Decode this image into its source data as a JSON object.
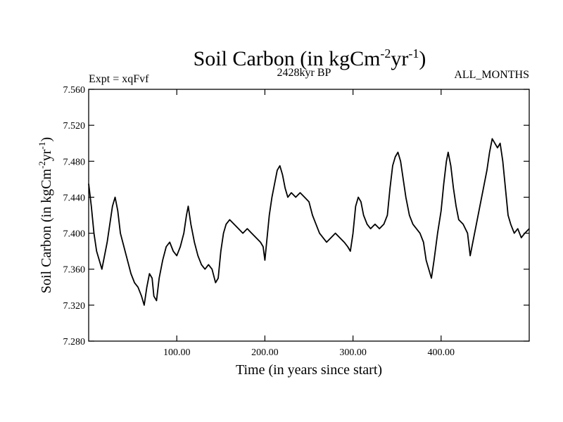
{
  "chart_data": {
    "type": "line",
    "title": "Soil Carbon (in kgCm",
    "title_sup1": "-2",
    "title_mid": "yr",
    "title_sup2": "-1",
    "title_end": ")",
    "subtitle_left": "Expt = xqFvf",
    "subtitle_center": "2428kyr BP",
    "subtitle_right": "ALL_MONTHS",
    "xlabel": "Time (in years since start)",
    "ylabel": "Soil Carbon (in kgCm",
    "ylabel_sup1": "-2",
    "ylabel_mid": "yr",
    "ylabel_sup2": "-1",
    "ylabel_end": ")",
    "xlim": [
      0,
      500
    ],
    "ylim": [
      7.28,
      7.56
    ],
    "xticks": [
      100,
      200,
      300,
      400
    ],
    "xtick_labels": [
      "100.00",
      "200.00",
      "300.00",
      "400.00"
    ],
    "yticks": [
      7.28,
      7.32,
      7.36,
      7.4,
      7.44,
      7.48,
      7.52,
      7.56
    ],
    "ytick_labels": [
      "7.280",
      "7.320",
      "7.360",
      "7.400",
      "7.440",
      "7.480",
      "7.520",
      "7.560"
    ],
    "grid": false,
    "series": [
      {
        "name": "Soil Carbon",
        "color": "#000000",
        "points": [
          [
            0,
            7.455
          ],
          [
            3,
            7.43
          ],
          [
            6,
            7.4
          ],
          [
            9,
            7.38
          ],
          [
            12,
            7.37
          ],
          [
            15,
            7.36
          ],
          [
            18,
            7.375
          ],
          [
            21,
            7.39
          ],
          [
            24,
            7.41
          ],
          [
            27,
            7.43
          ],
          [
            30,
            7.44
          ],
          [
            33,
            7.425
          ],
          [
            36,
            7.4
          ],
          [
            40,
            7.385
          ],
          [
            44,
            7.37
          ],
          [
            48,
            7.355
          ],
          [
            52,
            7.345
          ],
          [
            56,
            7.34
          ],
          [
            60,
            7.33
          ],
          [
            63,
            7.32
          ],
          [
            66,
            7.34
          ],
          [
            69,
            7.355
          ],
          [
            72,
            7.35
          ],
          [
            74,
            7.33
          ],
          [
            77,
            7.325
          ],
          [
            80,
            7.35
          ],
          [
            84,
            7.37
          ],
          [
            88,
            7.385
          ],
          [
            92,
            7.39
          ],
          [
            96,
            7.38
          ],
          [
            100,
            7.375
          ],
          [
            104,
            7.385
          ],
          [
            108,
            7.4
          ],
          [
            111,
            7.42
          ],
          [
            113,
            7.43
          ],
          [
            116,
            7.41
          ],
          [
            120,
            7.39
          ],
          [
            124,
            7.375
          ],
          [
            128,
            7.365
          ],
          [
            132,
            7.36
          ],
          [
            136,
            7.365
          ],
          [
            140,
            7.36
          ],
          [
            144,
            7.345
          ],
          [
            147,
            7.35
          ],
          [
            150,
            7.38
          ],
          [
            153,
            7.4
          ],
          [
            156,
            7.41
          ],
          [
            160,
            7.415
          ],
          [
            165,
            7.41
          ],
          [
            170,
            7.405
          ],
          [
            175,
            7.4
          ],
          [
            180,
            7.405
          ],
          [
            185,
            7.4
          ],
          [
            190,
            7.395
          ],
          [
            195,
            7.39
          ],
          [
            198,
            7.385
          ],
          [
            200,
            7.37
          ],
          [
            202,
            7.39
          ],
          [
            205,
            7.42
          ],
          [
            208,
            7.44
          ],
          [
            211,
            7.455
          ],
          [
            214,
            7.47
          ],
          [
            217,
            7.475
          ],
          [
            220,
            7.465
          ],
          [
            223,
            7.45
          ],
          [
            226,
            7.44
          ],
          [
            230,
            7.445
          ],
          [
            235,
            7.44
          ],
          [
            240,
            7.445
          ],
          [
            245,
            7.44
          ],
          [
            250,
            7.435
          ],
          [
            254,
            7.42
          ],
          [
            258,
            7.41
          ],
          [
            262,
            7.4
          ],
          [
            266,
            7.395
          ],
          [
            270,
            7.39
          ],
          [
            275,
            7.395
          ],
          [
            280,
            7.4
          ],
          [
            285,
            7.395
          ],
          [
            290,
            7.39
          ],
          [
            294,
            7.385
          ],
          [
            297,
            7.38
          ],
          [
            300,
            7.4
          ],
          [
            303,
            7.43
          ],
          [
            306,
            7.44
          ],
          [
            309,
            7.435
          ],
          [
            312,
            7.42
          ],
          [
            316,
            7.41
          ],
          [
            320,
            7.405
          ],
          [
            325,
            7.41
          ],
          [
            330,
            7.405
          ],
          [
            335,
            7.41
          ],
          [
            339,
            7.42
          ],
          [
            342,
            7.45
          ],
          [
            345,
            7.475
          ],
          [
            348,
            7.485
          ],
          [
            351,
            7.49
          ],
          [
            354,
            7.48
          ],
          [
            357,
            7.46
          ],
          [
            360,
            7.44
          ],
          [
            364,
            7.42
          ],
          [
            368,
            7.41
          ],
          [
            372,
            7.405
          ],
          [
            376,
            7.4
          ],
          [
            380,
            7.39
          ],
          [
            383,
            7.37
          ],
          [
            386,
            7.36
          ],
          [
            389,
            7.35
          ],
          [
            392,
            7.37
          ],
          [
            396,
            7.4
          ],
          [
            400,
            7.425
          ],
          [
            403,
            7.455
          ],
          [
            406,
            7.48
          ],
          [
            408,
            7.49
          ],
          [
            411,
            7.475
          ],
          [
            414,
            7.45
          ],
          [
            417,
            7.43
          ],
          [
            420,
            7.415
          ],
          [
            425,
            7.41
          ],
          [
            430,
            7.4
          ],
          [
            433,
            7.375
          ],
          [
            436,
            7.39
          ],
          [
            440,
            7.41
          ],
          [
            444,
            7.43
          ],
          [
            448,
            7.45
          ],
          [
            452,
            7.47
          ],
          [
            455,
            7.49
          ],
          [
            458,
            7.505
          ],
          [
            461,
            7.5
          ],
          [
            464,
            7.495
          ],
          [
            467,
            7.5
          ],
          [
            470,
            7.48
          ],
          [
            473,
            7.45
          ],
          [
            476,
            7.42
          ],
          [
            479,
            7.41
          ],
          [
            483,
            7.4
          ],
          [
            487,
            7.405
          ],
          [
            491,
            7.395
          ],
          [
            495,
            7.4
          ],
          [
            500,
            7.405
          ]
        ]
      }
    ]
  }
}
